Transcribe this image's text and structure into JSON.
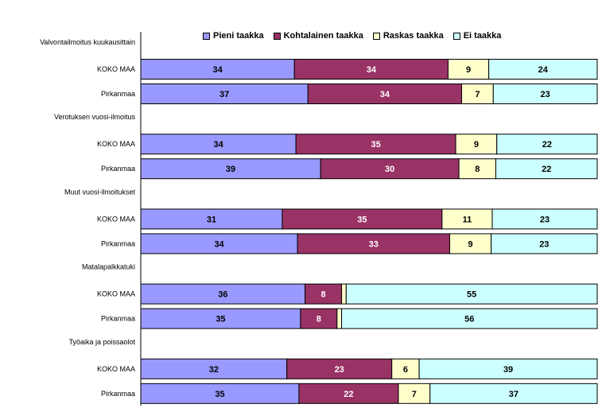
{
  "chart_data": {
    "type": "bar",
    "orientation": "horizontal",
    "stacked": true,
    "percent_stacked": true,
    "title": "",
    "xlabel": "",
    "ylabel": "",
    "legend_position": "top",
    "series": [
      {
        "name": "Pieni taakka",
        "color": "#9999ff"
      },
      {
        "name": "Kohtalainen taakka",
        "color": "#993366"
      },
      {
        "name": "Raskas taakka",
        "color": "#ffffcc"
      },
      {
        "name": "Ei taakka",
        "color": "#ccffff"
      }
    ],
    "groups": [
      {
        "label": "Valvontailmoitus kuukausittain",
        "rows": [
          {
            "label": "KOKO MAA",
            "values": [
              34,
              34,
              9,
              24
            ],
            "labels": [
              "34",
              "34",
              "9",
              "24"
            ]
          },
          {
            "label": "Pirkanmaa",
            "values": [
              37,
              34,
              7,
              23
            ],
            "labels": [
              "37",
              "34",
              "7",
              "23"
            ]
          }
        ]
      },
      {
        "label": "Verotuksen vuosi-ilmoitus",
        "rows": [
          {
            "label": "KOKO MAA",
            "values": [
              34,
              35,
              9,
              22
            ],
            "labels": [
              "34",
              "35",
              "9",
              "22"
            ]
          },
          {
            "label": "Pirkanmaa",
            "values": [
              39,
              30,
              8,
              22
            ],
            "labels": [
              "39",
              "30",
              "8",
              "22"
            ]
          }
        ]
      },
      {
        "label": "Muut vuosi-ilmoitukset",
        "rows": [
          {
            "label": "KOKO MAA",
            "values": [
              31,
              35,
              11,
              23
            ],
            "labels": [
              "31",
              "35",
              "11",
              "23"
            ]
          },
          {
            "label": "Pirkanmaa",
            "values": [
              34,
              33,
              9,
              23
            ],
            "labels": [
              "34",
              "33",
              "9",
              "23"
            ]
          }
        ]
      },
      {
        "label": "Matalapalkkatuki",
        "rows": [
          {
            "label": "KOKO MAA",
            "values": [
              36,
              8,
              1,
              55
            ],
            "labels": [
              "36",
              "8",
              "",
              "55"
            ]
          },
          {
            "label": "Pirkanmaa",
            "values": [
              35,
              8,
              1,
              56
            ],
            "labels": [
              "35",
              "8",
              "",
              "56"
            ]
          }
        ]
      },
      {
        "label": "Työaika ja poissaolot",
        "rows": [
          {
            "label": "KOKO MAA",
            "values": [
              32,
              23,
              6,
              39
            ],
            "labels": [
              "32",
              "23",
              "6",
              "39"
            ]
          },
          {
            "label": "Pirkanmaa",
            "values": [
              35,
              22,
              7,
              37
            ],
            "labels": [
              "35",
              "22",
              "7",
              "37"
            ]
          }
        ]
      }
    ]
  }
}
